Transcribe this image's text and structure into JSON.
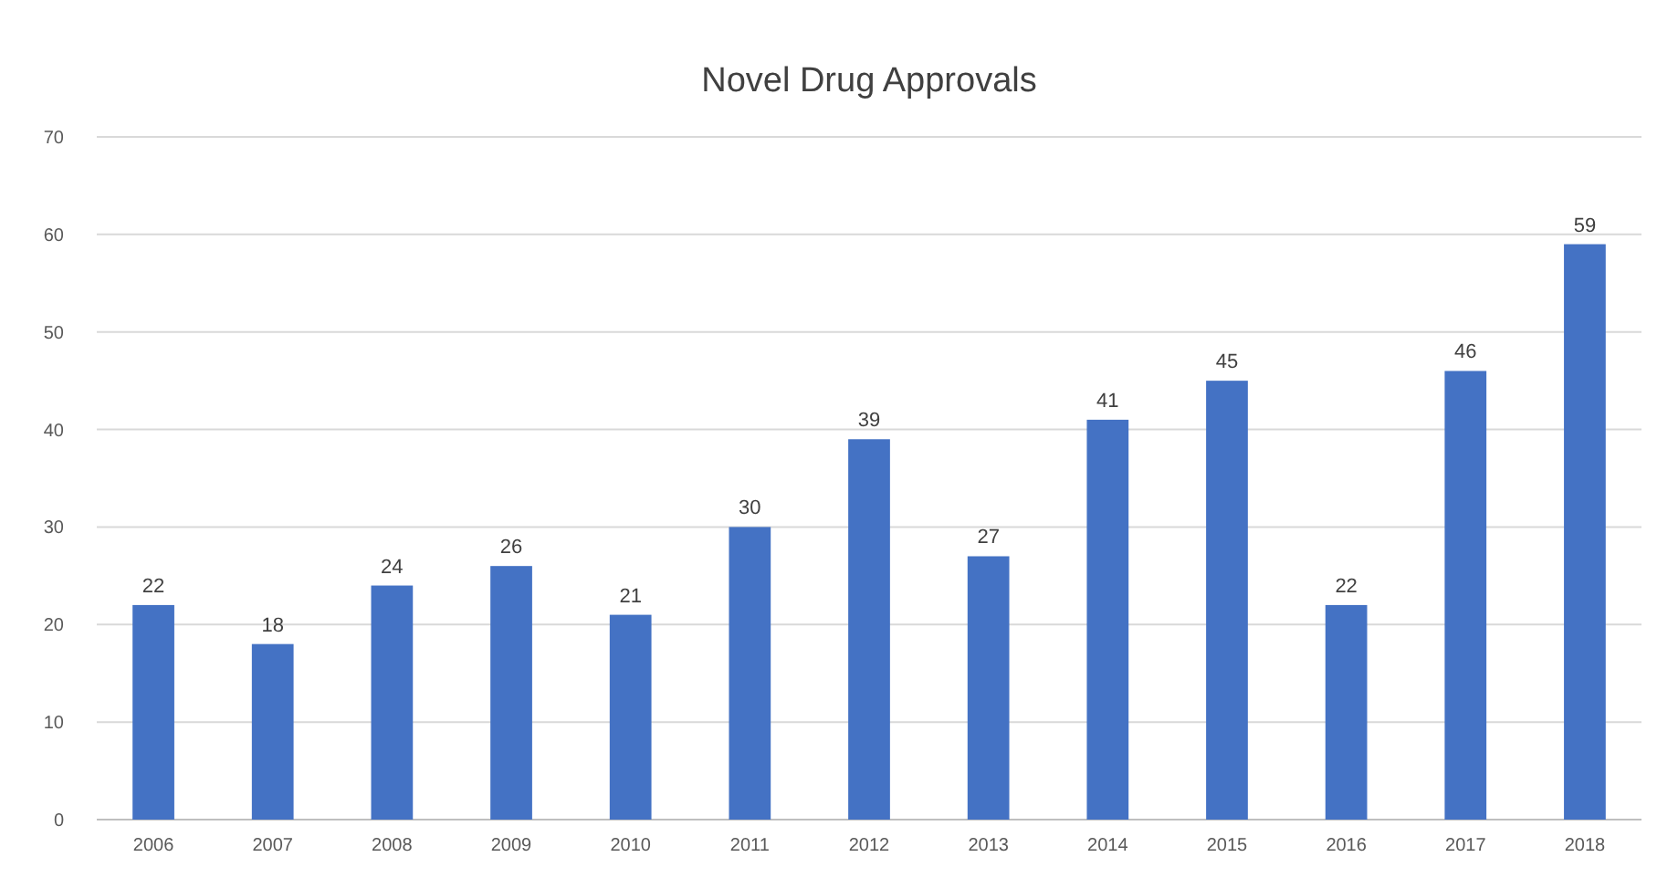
{
  "chart_data": {
    "type": "bar",
    "title": "Novel Drug Approvals",
    "categories": [
      "2006",
      "2007",
      "2008",
      "2009",
      "2010",
      "2011",
      "2012",
      "2013",
      "2014",
      "2015",
      "2016",
      "2017",
      "2018"
    ],
    "values": [
      22,
      18,
      24,
      26,
      21,
      30,
      39,
      27,
      41,
      45,
      22,
      46,
      59
    ],
    "color": "#4472c4",
    "ylim": [
      0,
      70
    ],
    "yticks": [
      0,
      10,
      20,
      30,
      40,
      50,
      60,
      70
    ],
    "grid": "y",
    "data_labels": true
  }
}
